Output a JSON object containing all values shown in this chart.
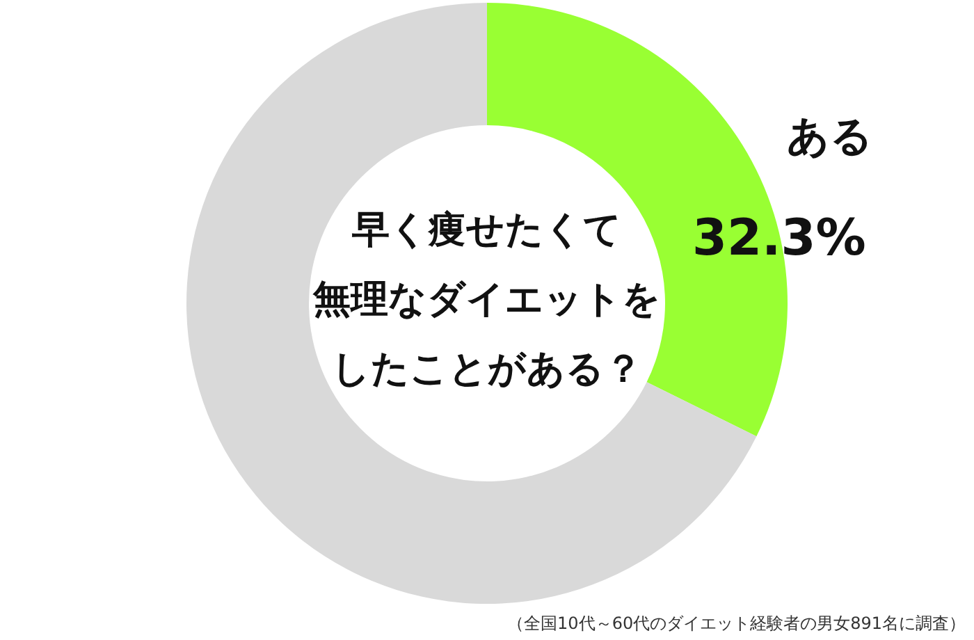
{
  "chart_data": {
    "type": "donut",
    "title": "早く痩せたくて無理なダイエットをしたことがある？",
    "categories": [
      "ある",
      null
    ],
    "values": [
      32.3,
      67.7
    ],
    "colors": [
      "#99ff33",
      "#d9d9d9"
    ],
    "value_labels": [
      "32.3%",
      null
    ],
    "annotations": [
      "（全国10代～60代のダイエット経験者の男女891名に調査）"
    ]
  }
}
